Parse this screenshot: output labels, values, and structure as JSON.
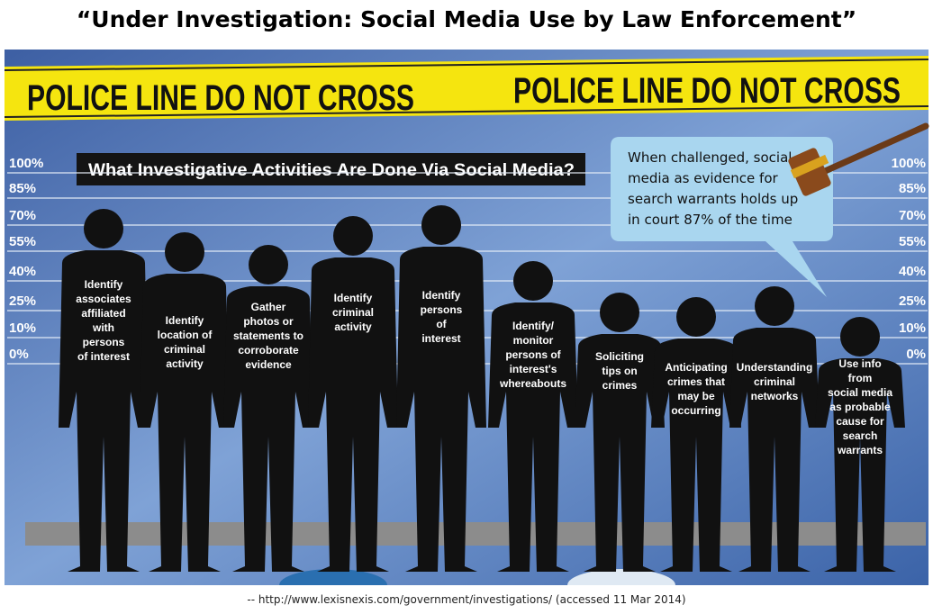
{
  "title": "“Under Investigation: Social Media Use by Law Enforcement”",
  "tape": [
    "POLICE LINE DO NOT CROSS",
    "POLICE LINE DO NOT CROSS"
  ],
  "heading": "What Investigative Activities Are Done Via Social Media?",
  "scale_left": [
    "100%",
    "85%",
    "70%",
    "55%",
    "40%",
    "25%",
    "10%",
    "0%"
  ],
  "scale_right": [
    "100%",
    "85%",
    "70%",
    "55%",
    "40%",
    "25%",
    "10%",
    "0%"
  ],
  "callout": [
    "When challenged, social",
    "media as evidence for",
    "search warrants holds up",
    "in court 87% of the time"
  ],
  "figures": [
    {
      "lines": [
        "Identify",
        "associates",
        "affiliated",
        "with",
        "persons",
        "of interest"
      ]
    },
    {
      "lines": [
        "Identify",
        "location of",
        "criminal",
        "activity"
      ]
    },
    {
      "lines": [
        "Gather",
        "photos or",
        "statements to",
        "corroborate",
        "evidence"
      ]
    },
    {
      "lines": [
        "Identify",
        "criminal",
        "activity"
      ]
    },
    {
      "lines": [
        "Identify",
        "persons",
        "of",
        "interest"
      ]
    },
    {
      "lines": [
        "Identify/",
        "monitor",
        "persons of",
        "interest's",
        "whereabouts"
      ]
    },
    {
      "lines": [
        "Soliciting",
        "tips on",
        "crimes"
      ]
    },
    {
      "lines": [
        "Anticipating",
        "crimes that",
        "may be",
        "occurring"
      ]
    },
    {
      "lines": [
        "Understanding",
        "criminal",
        "networks"
      ]
    },
    {
      "lines": [
        "Use info",
        "from",
        "social media",
        "as probable",
        "cause for",
        "search",
        "warrants"
      ]
    }
  ],
  "source": "-- http://www.lexisnexis.com/government/investigations/  (accessed 11 Mar 2014)"
}
